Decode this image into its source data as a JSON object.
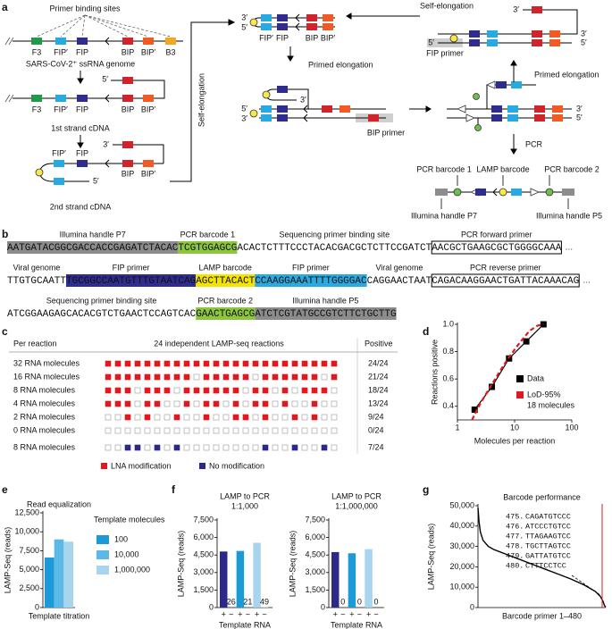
{
  "panel_a": {
    "label": "a",
    "primer_binding_sites": "Primer binding sites",
    "sites": [
      "F3",
      "FIP′",
      "FIP",
      "BIP",
      "BIP′",
      "B3"
    ],
    "genome": "SARS-CoV-2⁺ ssRNA genome",
    "first_strand": "1st strand cDNA",
    "second_strand": "2nd strand cDNA",
    "self_elongation": "Self-elongation",
    "primed_elongation": "Primed elongation",
    "bip_primer": "BIP primer",
    "fip_primer": "FIP primer",
    "pcr": "PCR",
    "three_prime": "3′",
    "five_prime": "5′",
    "pcr_barcode_1": "PCR barcode 1",
    "lamp_barcode": "LAMP barcode",
    "pcr_barcode_2": "PCR barcode 2",
    "illumina_p7": "Illumina handle P7",
    "illumina_p5": "Illumina handle P5"
  },
  "panel_b": {
    "label": "b",
    "lines": [
      {
        "segments": [
          {
            "label": "Illumina handle P7",
            "seq": "AATGATACGGCGACCACCGAGATCTACAC",
            "style": "gray"
          },
          {
            "label": "PCR barcode 1",
            "seq": "TCGTGGAGCG",
            "style": "green"
          },
          {
            "label": "Sequencing primer binding site",
            "seq": "ACACTCTTTCCCTACACGACGCTCTTCCGATCT",
            "style": "plain"
          },
          {
            "label": "PCR forward primer",
            "seq": "AACGCTGAAGCGCTGGGGCAAA",
            "style": "box"
          }
        ],
        "ellipsis": "…"
      },
      {
        "segments": [
          {
            "label": "Viral genome",
            "seq": "TTGTGCAATT",
            "style": "plain"
          },
          {
            "label": "FIP primer",
            "seq": "TGCGGCCAATGTTTGTAATCAG",
            "style": "navy"
          },
          {
            "label": "LAMP barcode",
            "seq": "AGCTTACACT",
            "style": "yellow"
          },
          {
            "label": "FIP primer",
            "seq": "CCAAGGAAATTTTGGGGAC",
            "style": "blue"
          },
          {
            "label": "Viral genome",
            "seq": "CAGGAACTAAT",
            "style": "plain"
          },
          {
            "label": "PCR reverse primer",
            "seq": "CAGACAAGGAACTGATTACAAACAG",
            "style": "box"
          }
        ],
        "ellipsis": "…"
      },
      {
        "segments": [
          {
            "label": "Sequencing primer binding site",
            "seq": "ATCGGAAGAGCACACGTCTGAACTCCAGTCAC",
            "style": "plain"
          },
          {
            "label": "PCR barcode 2",
            "seq": "GAACTGAGCG",
            "style": "green"
          },
          {
            "label": "Illumina handle P5",
            "seq": "ATCTCGTATGCCGTCTTCTGCTTG",
            "style": "gray"
          }
        ]
      }
    ]
  },
  "panel_c": {
    "label": "c",
    "header": [
      "Per reaction",
      "24 independent LAMP-seq reactions",
      "Positive"
    ],
    "rows": [
      {
        "label": "32 RNA molecules",
        "positive": "24/24",
        "color": "#e0191f",
        "wells": [
          1,
          1,
          1,
          1,
          1,
          1,
          1,
          1,
          1,
          1,
          1,
          1,
          1,
          1,
          1,
          1,
          1,
          1,
          1,
          1,
          1,
          1,
          1,
          1
        ]
      },
      {
        "label": "16 RNA molecules",
        "positive": "21/24",
        "color": "#e0191f",
        "wells": [
          1,
          1,
          1,
          1,
          1,
          1,
          1,
          1,
          1,
          0,
          1,
          1,
          1,
          1,
          1,
          0,
          1,
          1,
          1,
          1,
          1,
          1,
          0,
          1
        ]
      },
      {
        "label": "8 RNA molecules",
        "positive": "18/24",
        "color": "#e0191f",
        "wells": [
          1,
          1,
          1,
          0,
          1,
          1,
          1,
          0,
          1,
          1,
          1,
          1,
          1,
          1,
          0,
          1,
          1,
          0,
          1,
          0,
          1,
          1,
          1,
          0
        ]
      },
      {
        "label": "4 RNA molecules",
        "positive": "13/24",
        "color": "#e0191f",
        "wells": [
          1,
          1,
          1,
          0,
          1,
          1,
          0,
          0,
          1,
          0,
          1,
          1,
          0,
          1,
          0,
          1,
          1,
          0,
          1,
          0,
          0,
          1,
          0,
          0
        ]
      },
      {
        "label": "2 RNA molecules",
        "positive": "9/24",
        "color": "#e0191f",
        "wells": [
          0,
          0,
          1,
          0,
          1,
          0,
          0,
          1,
          0,
          0,
          1,
          0,
          0,
          1,
          1,
          0,
          1,
          0,
          0,
          1,
          0,
          1,
          0,
          0
        ]
      },
      {
        "label": "0 RNA molecules",
        "positive": "0/24",
        "color": "#e0191f",
        "wells": [
          0,
          0,
          0,
          0,
          0,
          0,
          0,
          0,
          0,
          0,
          0,
          0,
          0,
          0,
          0,
          0,
          0,
          0,
          0,
          0,
          0,
          0,
          0,
          0
        ]
      },
      {
        "label": "8 RNA molecules",
        "positive": "7/24",
        "color": "#2b2a86",
        "wells": [
          0,
          0,
          1,
          1,
          0,
          1,
          0,
          1,
          0,
          0,
          0,
          0,
          0,
          0,
          0,
          0,
          1,
          0,
          0,
          1,
          0,
          0,
          1,
          0
        ]
      }
    ],
    "legend": [
      {
        "name": "LNA modification",
        "color": "#e0191f"
      },
      {
        "name": "No modification",
        "color": "#2b2a86"
      }
    ]
  },
  "chart_data": [
    {
      "type": "scatter",
      "panel": "d",
      "xlabel": "Molecules per reaction",
      "ylabel": "Reactions positive",
      "xlog": true,
      "xlim": [
        1,
        100
      ],
      "xticks": [
        1,
        10,
        100
      ],
      "ylim": [
        0.3,
        1.0
      ],
      "yticks": [
        0.4,
        0.6,
        0.8,
        {
          "value": 1.0,
          "label": "1.0"
        }
      ],
      "series": [
        {
          "name": "Data",
          "color": "#000000",
          "style": "solid",
          "x": [
            2,
            4,
            8,
            16,
            32
          ],
          "values": [
            0.375,
            0.542,
            0.75,
            0.875,
            1.0
          ]
        },
        {
          "name": "LoD-95%",
          "color": "#e0191f",
          "style": "dashed",
          "x": [
            1.8,
            2.5,
            4,
            6,
            8,
            12,
            18,
            25,
            32
          ],
          "values": [
            0.3,
            0.42,
            0.56,
            0.68,
            0.76,
            0.86,
            0.95,
            0.99,
            1.0
          ]
        }
      ],
      "legend_note": "18 molecules"
    },
    {
      "type": "bar",
      "panel": "e",
      "title": "Read equalization",
      "xlabel": "Template titration",
      "ylabel": "LAMP-Seq (reads)",
      "ylim": [
        0,
        12500
      ],
      "yticks": [
        0,
        {
          "value": 2500,
          "label": "2,500"
        },
        {
          "value": 5000,
          "label": "5,000"
        },
        {
          "value": 7500,
          "label": "7,500"
        },
        {
          "value": 10000,
          "label": "10,000"
        },
        {
          "value": 12500,
          "label": "12,500"
        }
      ],
      "categories": [
        null
      ],
      "legend_title": "Template molecules",
      "series": [
        {
          "name": "100",
          "color": "#1b9ad7",
          "values": [
            6600
          ]
        },
        {
          "name": "10,000",
          "color": "#5cb8e6",
          "values": [
            9000
          ]
        },
        {
          "name": "1,000,000",
          "color": "#a8d4ee",
          "values": [
            8700
          ]
        }
      ]
    },
    {
      "type": "bar",
      "panel": "f",
      "title": "LAMP to PCR",
      "subtitle": "1:1,000",
      "xlabel": "Template RNA",
      "ylabel": "LAMP-Seq (reads)",
      "ylim": [
        0,
        7500
      ],
      "yticks": [
        0,
        {
          "value": 1500,
          "label": "1,500"
        },
        {
          "value": 3000,
          "label": "3,000"
        },
        {
          "value": 4500,
          "label": "4,500"
        },
        {
          "value": 6000,
          "label": "6,000"
        },
        {
          "value": 7500,
          "label": "7,500"
        }
      ],
      "categories": [
        "+",
        "−",
        "+",
        "−",
        "+",
        "−"
      ],
      "values": [
        4800,
        26,
        4850,
        21,
        5550,
        49
      ],
      "value_labels": [
        null,
        "26",
        null,
        "21",
        null,
        "49"
      ],
      "colors": [
        "#2b2a86",
        "#2b2a86",
        "#1b9ad7",
        "#1b9ad7",
        "#a8d4ee",
        "#a8d4ee"
      ]
    },
    {
      "type": "bar",
      "title": "LAMP to PCR",
      "subtitle": "1:1,000,000",
      "xlabel": "Template RNA",
      "ylabel": "LAMP-Seq (reads)",
      "ylim": [
        0,
        7500
      ],
      "yticks": [
        0,
        {
          "value": 1500,
          "label": "1,500"
        },
        {
          "value": 3000,
          "label": "3,000"
        },
        {
          "value": 4500,
          "label": "4,500"
        },
        {
          "value": 6000,
          "label": "6,000"
        },
        {
          "value": 7500,
          "label": "7,500"
        }
      ],
      "categories": [
        "+",
        "−",
        "+",
        "−",
        "+",
        "−"
      ],
      "values": [
        4750,
        0,
        4650,
        0,
        5000,
        0
      ],
      "value_labels": [
        null,
        "0",
        null,
        "0",
        null,
        "0"
      ],
      "colors": [
        "#2b2a86",
        "#2b2a86",
        "#1b9ad7",
        "#1b9ad7",
        "#a8d4ee",
        "#a8d4ee"
      ]
    },
    {
      "type": "line",
      "panel": "g",
      "title": "Barcode performance",
      "xlabel": "Barcode primer 1–480",
      "ylabel": "LAMP-Seq (reads)",
      "xlim": [
        1,
        480
      ],
      "ylim": [
        0,
        50000
      ],
      "yticks": [
        0,
        {
          "value": 10000,
          "label": "10,000"
        },
        {
          "value": 20000,
          "label": "20,000"
        },
        {
          "value": 30000,
          "label": "30,000"
        },
        {
          "value": 40000,
          "label": "40,000"
        },
        {
          "value": 50000,
          "label": "50,000"
        }
      ],
      "color": "#000000",
      "x": [
        1,
        5,
        10,
        20,
        40,
        60,
        80,
        100,
        150,
        200,
        250,
        300,
        350,
        400,
        440,
        460,
        470,
        475,
        480
      ],
      "values": [
        49000,
        42000,
        37000,
        33000,
        30000,
        28500,
        27500,
        26500,
        24000,
        21500,
        19000,
        16500,
        14000,
        11000,
        8000,
        5500,
        3000,
        1000,
        200
      ],
      "inset": {
        "numbers": [
          "475.",
          "476.",
          "477.",
          "478.",
          "479.",
          "480."
        ],
        "prefixes": [
          "CAGAT",
          "ATCCCT",
          "TTAGAA",
          "TGCTTA",
          "GATTAT",
          "CTTTC"
        ],
        "suffixes": [
          "GTCCC",
          "GTCC",
          "GTCC",
          "GTCC",
          "GTCC",
          "CTCC"
        ],
        "suffix_color": "#e0191f"
      }
    }
  ]
}
